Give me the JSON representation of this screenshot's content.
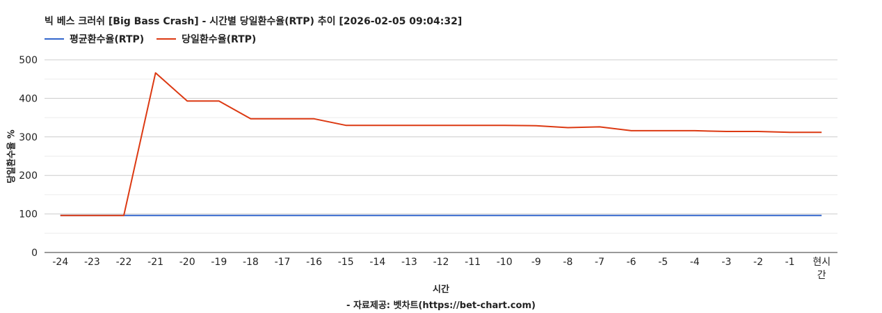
{
  "chart_data": {
    "type": "line",
    "title": "빅 베스 크러쉬 [Big Bass Crash] - 시간별 당일환수율(RTP) 추이 [2026-02-05 09:04:32]",
    "xlabel": "시간",
    "ylabel": "당일환수율 %",
    "source": "- 자료제공: 벳차트(https://bet-chart.com)",
    "categories": [
      "-24",
      "-23",
      "-22",
      "-21",
      "-20",
      "-19",
      "-18",
      "-17",
      "-16",
      "-15",
      "-14",
      "-13",
      "-12",
      "-11",
      "-10",
      "-9",
      "-8",
      "-7",
      "-6",
      "-5",
      "-4",
      "-3",
      "-2",
      "-1",
      "현시간"
    ],
    "ylim": [
      0,
      500
    ],
    "yticks": [
      0,
      100,
      200,
      300,
      400,
      500
    ],
    "grid": true,
    "legend_position": "top-left",
    "series": [
      {
        "name": "평균환수율(RTP)",
        "color": "#3366cc",
        "values": [
          96,
          96,
          96,
          96,
          96,
          96,
          96,
          96,
          96,
          96,
          96,
          96,
          96,
          96,
          96,
          96,
          96,
          96,
          96,
          96,
          96,
          96,
          96,
          96,
          96
        ]
      },
      {
        "name": "당일환수율(RTP)",
        "color": "#dc3912",
        "values": [
          96,
          96,
          96,
          466,
          393,
          393,
          347,
          347,
          347,
          330,
          330,
          330,
          330,
          330,
          330,
          329,
          324,
          326,
          316,
          316,
          316,
          314,
          314,
          312,
          312
        ]
      }
    ]
  }
}
